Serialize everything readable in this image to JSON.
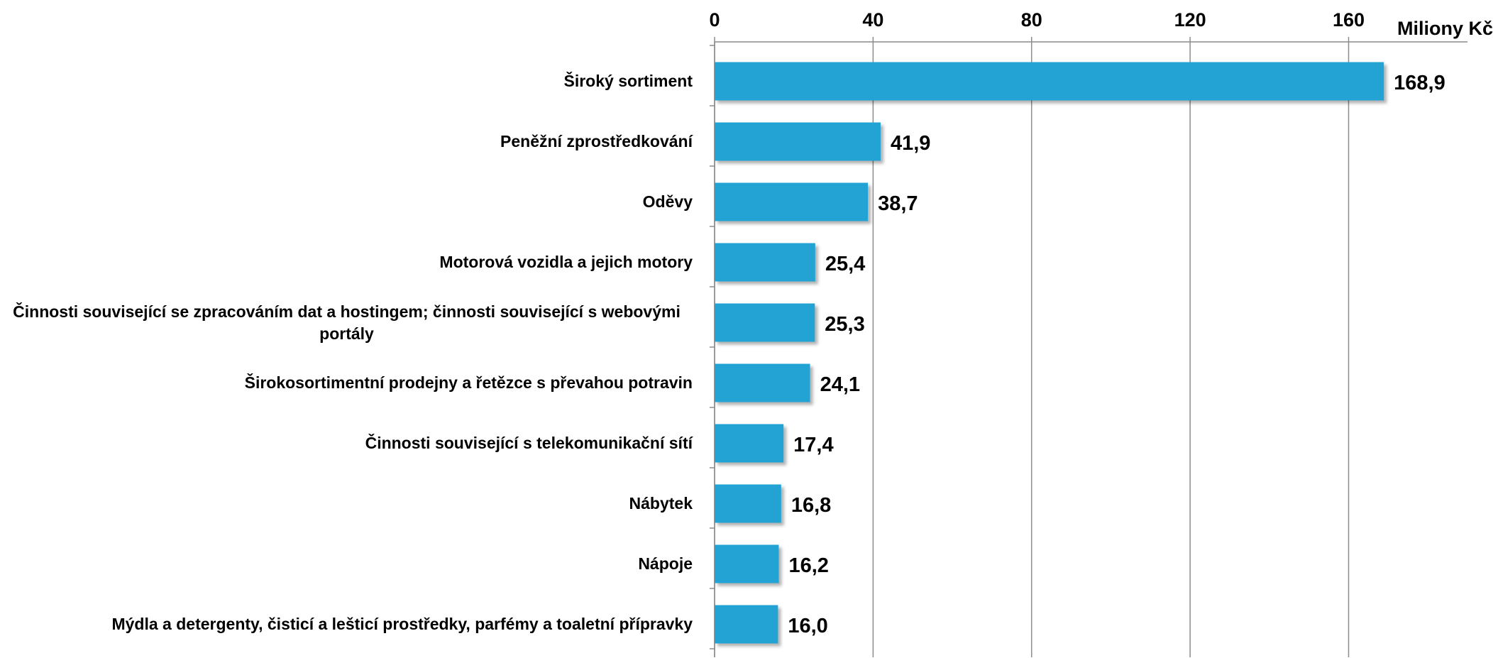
{
  "chart_data": {
    "type": "hbar",
    "x_label": "Miliony Kč",
    "categories": [
      "Široký sortiment",
      "Peněžní zprostředkování",
      "Oděvy",
      "Motorová vozidla a jejich motory",
      "Činnosti související se zpracováním dat a hostingem; činnosti související s webovými portály",
      "Širokosortimentní prodejny a řetězce s převahou potravin",
      "Činnosti související s telekomunikační sítí",
      "Nábytek",
      "Nápoje",
      "Mýdla a detergenty, čisticí a lešticí prostředky, parfémy a toaletní přípravky"
    ],
    "values": [
      168.9,
      41.9,
      38.7,
      25.4,
      25.3,
      24.1,
      17.4,
      16.8,
      16.2,
      16.0
    ],
    "value_labels": [
      "168,9",
      "41,9",
      "38,7",
      "25,4",
      "25,3",
      "24,1",
      "17,4",
      "16,8",
      "16,2",
      "16,0"
    ],
    "color": "#23a3d3",
    "xlim": [
      0,
      190
    ],
    "xticks": [
      0,
      40,
      80,
      120,
      160
    ],
    "grid": true
  }
}
